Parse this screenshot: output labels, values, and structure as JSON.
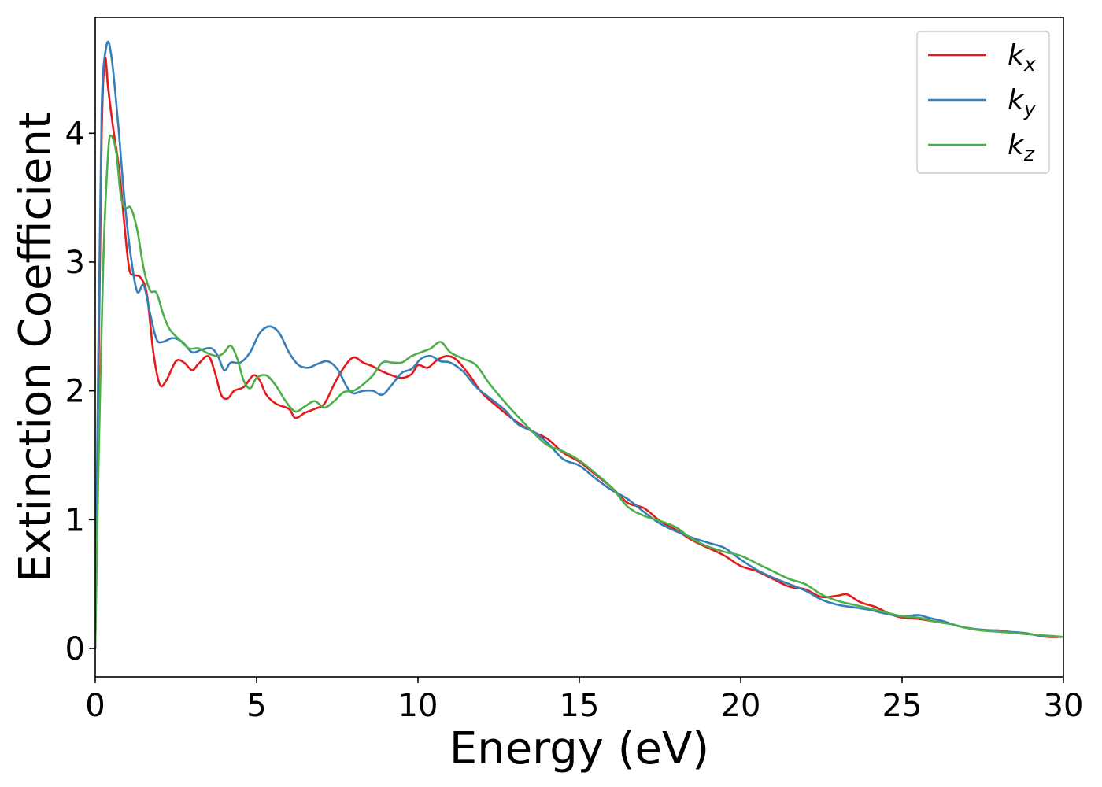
{
  "chart_data": {
    "type": "line",
    "title": "",
    "xlabel": "Energy (eV)",
    "ylabel": "Extinction Coefficient",
    "xlim": [
      0,
      30
    ],
    "ylim": [
      -0.22,
      4.9
    ],
    "xticks": [
      0,
      5,
      10,
      15,
      20,
      25,
      30
    ],
    "yticks": [
      0,
      1,
      2,
      3,
      4
    ],
    "grid": false,
    "legend_position": "top-right",
    "series": [
      {
        "name": "k_x",
        "legend_base": "k",
        "legend_sub": "x",
        "color": "#e41a1c",
        "points": [
          [
            0,
            0
          ],
          [
            0.1,
            2.1
          ],
          [
            0.2,
            4.0
          ],
          [
            0.3,
            4.58
          ],
          [
            0.4,
            4.35
          ],
          [
            0.55,
            4.05
          ],
          [
            0.75,
            3.7
          ],
          [
            0.9,
            3.3
          ],
          [
            1.05,
            2.95
          ],
          [
            1.2,
            2.9
          ],
          [
            1.4,
            2.88
          ],
          [
            1.6,
            2.75
          ],
          [
            1.8,
            2.3
          ],
          [
            2.0,
            2.05
          ],
          [
            2.2,
            2.08
          ],
          [
            2.5,
            2.23
          ],
          [
            2.75,
            2.22
          ],
          [
            3.0,
            2.16
          ],
          [
            3.2,
            2.21
          ],
          [
            3.5,
            2.27
          ],
          [
            3.7,
            2.15
          ],
          [
            3.9,
            1.97
          ],
          [
            4.1,
            1.94
          ],
          [
            4.3,
            2.0
          ],
          [
            4.6,
            2.03
          ],
          [
            4.9,
            2.12
          ],
          [
            5.1,
            2.08
          ],
          [
            5.3,
            1.97
          ],
          [
            5.6,
            1.9
          ],
          [
            6.0,
            1.86
          ],
          [
            6.2,
            1.79
          ],
          [
            6.5,
            1.83
          ],
          [
            6.8,
            1.86
          ],
          [
            7.1,
            1.9
          ],
          [
            7.4,
            2.05
          ],
          [
            7.7,
            2.18
          ],
          [
            8.0,
            2.26
          ],
          [
            8.3,
            2.22
          ],
          [
            8.6,
            2.19
          ],
          [
            8.9,
            2.15
          ],
          [
            9.2,
            2.12
          ],
          [
            9.5,
            2.1
          ],
          [
            9.8,
            2.13
          ],
          [
            10.0,
            2.2
          ],
          [
            10.3,
            2.18
          ],
          [
            10.6,
            2.24
          ],
          [
            10.9,
            2.27
          ],
          [
            11.2,
            2.24
          ],
          [
            11.6,
            2.12
          ],
          [
            12.0,
            1.98
          ],
          [
            12.5,
            1.87
          ],
          [
            13.0,
            1.77
          ],
          [
            13.5,
            1.69
          ],
          [
            14.0,
            1.63
          ],
          [
            14.5,
            1.52
          ],
          [
            15.0,
            1.45
          ],
          [
            15.5,
            1.35
          ],
          [
            16.0,
            1.25
          ],
          [
            16.5,
            1.13
          ],
          [
            17.0,
            1.09
          ],
          [
            17.5,
            0.99
          ],
          [
            18.0,
            0.92
          ],
          [
            18.5,
            0.84
          ],
          [
            19.0,
            0.78
          ],
          [
            19.5,
            0.72
          ],
          [
            20.0,
            0.64
          ],
          [
            20.5,
            0.6
          ],
          [
            21.0,
            0.54
          ],
          [
            21.5,
            0.48
          ],
          [
            22.0,
            0.46
          ],
          [
            22.5,
            0.4
          ],
          [
            23.0,
            0.41
          ],
          [
            23.3,
            0.42
          ],
          [
            23.7,
            0.36
          ],
          [
            24.2,
            0.32
          ],
          [
            24.6,
            0.27
          ],
          [
            25.0,
            0.24
          ],
          [
            25.5,
            0.23
          ],
          [
            26.0,
            0.21
          ],
          [
            26.5,
            0.19
          ],
          [
            27.0,
            0.16
          ],
          [
            27.5,
            0.14
          ],
          [
            28.0,
            0.14
          ],
          [
            28.5,
            0.12
          ],
          [
            29.0,
            0.11
          ],
          [
            29.5,
            0.09
          ],
          [
            30.0,
            0.09
          ]
        ]
      },
      {
        "name": "k_y",
        "legend_base": "k",
        "legend_sub": "y",
        "color": "#377eb8",
        "points": [
          [
            0,
            0
          ],
          [
            0.1,
            2.4
          ],
          [
            0.2,
            4.2
          ],
          [
            0.35,
            4.68
          ],
          [
            0.5,
            4.6
          ],
          [
            0.7,
            4.1
          ],
          [
            0.9,
            3.5
          ],
          [
            1.1,
            3.05
          ],
          [
            1.3,
            2.77
          ],
          [
            1.5,
            2.82
          ],
          [
            1.7,
            2.6
          ],
          [
            1.9,
            2.4
          ],
          [
            2.1,
            2.38
          ],
          [
            2.4,
            2.41
          ],
          [
            2.7,
            2.38
          ],
          [
            3.0,
            2.3
          ],
          [
            3.3,
            2.32
          ],
          [
            3.6,
            2.33
          ],
          [
            3.8,
            2.27
          ],
          [
            4.0,
            2.16
          ],
          [
            4.2,
            2.22
          ],
          [
            4.5,
            2.22
          ],
          [
            4.8,
            2.3
          ],
          [
            5.1,
            2.45
          ],
          [
            5.4,
            2.5
          ],
          [
            5.7,
            2.45
          ],
          [
            6.0,
            2.3
          ],
          [
            6.3,
            2.2
          ],
          [
            6.6,
            2.18
          ],
          [
            6.9,
            2.21
          ],
          [
            7.2,
            2.23
          ],
          [
            7.5,
            2.17
          ],
          [
            7.8,
            2.03
          ],
          [
            8.0,
            1.98
          ],
          [
            8.3,
            2.0
          ],
          [
            8.6,
            2.0
          ],
          [
            8.9,
            1.97
          ],
          [
            9.2,
            2.05
          ],
          [
            9.5,
            2.14
          ],
          [
            9.8,
            2.17
          ],
          [
            10.1,
            2.25
          ],
          [
            10.4,
            2.27
          ],
          [
            10.7,
            2.23
          ],
          [
            11.0,
            2.22
          ],
          [
            11.4,
            2.15
          ],
          [
            11.8,
            2.03
          ],
          [
            12.2,
            1.95
          ],
          [
            12.7,
            1.85
          ],
          [
            13.1,
            1.74
          ],
          [
            13.6,
            1.68
          ],
          [
            14.0,
            1.6
          ],
          [
            14.5,
            1.47
          ],
          [
            15.0,
            1.42
          ],
          [
            15.5,
            1.32
          ],
          [
            16.0,
            1.23
          ],
          [
            16.5,
            1.16
          ],
          [
            17.0,
            1.06
          ],
          [
            17.5,
            0.97
          ],
          [
            18.0,
            0.91
          ],
          [
            18.5,
            0.86
          ],
          [
            19.0,
            0.82
          ],
          [
            19.5,
            0.78
          ],
          [
            20.0,
            0.69
          ],
          [
            20.5,
            0.61
          ],
          [
            21.0,
            0.55
          ],
          [
            21.5,
            0.5
          ],
          [
            22.0,
            0.45
          ],
          [
            22.5,
            0.38
          ],
          [
            23.0,
            0.34
          ],
          [
            23.5,
            0.32
          ],
          [
            24.0,
            0.3
          ],
          [
            24.5,
            0.27
          ],
          [
            25.0,
            0.25
          ],
          [
            25.5,
            0.26
          ],
          [
            25.8,
            0.24
          ],
          [
            26.3,
            0.21
          ],
          [
            26.8,
            0.17
          ],
          [
            27.3,
            0.15
          ],
          [
            27.8,
            0.14
          ],
          [
            28.3,
            0.13
          ],
          [
            28.8,
            0.12
          ],
          [
            29.3,
            0.1
          ],
          [
            30.0,
            0.09
          ]
        ]
      },
      {
        "name": "k_z",
        "legend_base": "k",
        "legend_sub": "z",
        "color": "#4daf4a",
        "points": [
          [
            0,
            0
          ],
          [
            0.1,
            1.4
          ],
          [
            0.25,
            3.0
          ],
          [
            0.4,
            3.85
          ],
          [
            0.5,
            3.98
          ],
          [
            0.65,
            3.85
          ],
          [
            0.8,
            3.5
          ],
          [
            0.95,
            3.42
          ],
          [
            1.1,
            3.42
          ],
          [
            1.3,
            3.25
          ],
          [
            1.5,
            2.95
          ],
          [
            1.7,
            2.78
          ],
          [
            1.9,
            2.76
          ],
          [
            2.1,
            2.6
          ],
          [
            2.3,
            2.48
          ],
          [
            2.6,
            2.4
          ],
          [
            2.9,
            2.33
          ],
          [
            3.2,
            2.33
          ],
          [
            3.5,
            2.29
          ],
          [
            3.8,
            2.27
          ],
          [
            4.0,
            2.3
          ],
          [
            4.2,
            2.35
          ],
          [
            4.4,
            2.25
          ],
          [
            4.6,
            2.08
          ],
          [
            4.8,
            2.02
          ],
          [
            5.0,
            2.1
          ],
          [
            5.3,
            2.12
          ],
          [
            5.6,
            2.04
          ],
          [
            5.9,
            1.92
          ],
          [
            6.2,
            1.84
          ],
          [
            6.5,
            1.88
          ],
          [
            6.8,
            1.92
          ],
          [
            7.1,
            1.87
          ],
          [
            7.4,
            1.92
          ],
          [
            7.7,
            1.99
          ],
          [
            8.0,
            2.0
          ],
          [
            8.3,
            2.05
          ],
          [
            8.6,
            2.12
          ],
          [
            8.9,
            2.22
          ],
          [
            9.2,
            2.22
          ],
          [
            9.5,
            2.22
          ],
          [
            9.8,
            2.27
          ],
          [
            10.1,
            2.3
          ],
          [
            10.4,
            2.33
          ],
          [
            10.7,
            2.38
          ],
          [
            11.0,
            2.3
          ],
          [
            11.4,
            2.25
          ],
          [
            11.8,
            2.2
          ],
          [
            12.2,
            2.06
          ],
          [
            12.7,
            1.91
          ],
          [
            13.1,
            1.8
          ],
          [
            13.6,
            1.67
          ],
          [
            14.0,
            1.58
          ],
          [
            14.5,
            1.53
          ],
          [
            15.0,
            1.46
          ],
          [
            15.5,
            1.36
          ],
          [
            16.0,
            1.25
          ],
          [
            16.5,
            1.1
          ],
          [
            17.0,
            1.03
          ],
          [
            17.5,
            0.99
          ],
          [
            18.0,
            0.94
          ],
          [
            18.5,
            0.85
          ],
          [
            19.0,
            0.79
          ],
          [
            19.5,
            0.75
          ],
          [
            20.0,
            0.72
          ],
          [
            20.5,
            0.66
          ],
          [
            21.0,
            0.6
          ],
          [
            21.5,
            0.54
          ],
          [
            22.0,
            0.5
          ],
          [
            22.5,
            0.42
          ],
          [
            23.0,
            0.37
          ],
          [
            23.5,
            0.34
          ],
          [
            24.0,
            0.31
          ],
          [
            24.5,
            0.28
          ],
          [
            25.0,
            0.25
          ],
          [
            25.5,
            0.24
          ],
          [
            26.0,
            0.21
          ],
          [
            26.5,
            0.19
          ],
          [
            27.0,
            0.16
          ],
          [
            27.5,
            0.14
          ],
          [
            28.0,
            0.13
          ],
          [
            28.5,
            0.12
          ],
          [
            29.0,
            0.11
          ],
          [
            29.5,
            0.1
          ],
          [
            30.0,
            0.09
          ]
        ]
      }
    ]
  }
}
